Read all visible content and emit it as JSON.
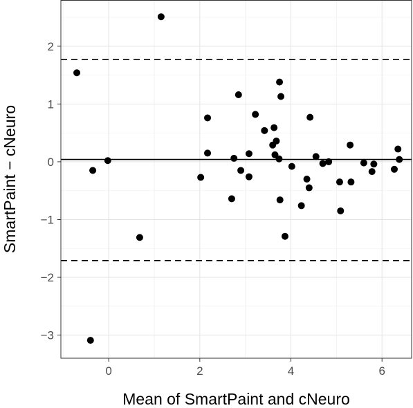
{
  "chart_data": {
    "type": "scatter",
    "title": "",
    "xlabel": "Mean of SmartPaint and cNeuro",
    "ylabel": "SmartPaint − cNeuro",
    "xlim": [
      -1.05,
      6.65
    ],
    "ylim": [
      -3.4,
      2.8
    ],
    "grid": true,
    "x_ticks": [
      0,
      2,
      4,
      6
    ],
    "x_tick_labels": [
      "0",
      "2",
      "4",
      "6"
    ],
    "y_ticks": [
      -3,
      -2,
      -1,
      0,
      1,
      2
    ],
    "y_tick_labels": [
      "−3",
      "−2",
      "−1",
      "0",
      "1",
      "2"
    ],
    "reference_lines": [
      {
        "y": 1.77,
        "style": "dashed"
      },
      {
        "y": 0.04,
        "style": "solid"
      },
      {
        "y": -1.71,
        "style": "dashed"
      }
    ],
    "points": [
      {
        "x": -0.7,
        "y": 1.54
      },
      {
        "x": -0.35,
        "y": -0.15
      },
      {
        "x": -0.02,
        "y": 0.02
      },
      {
        "x": -0.4,
        "y": -3.09
      },
      {
        "x": 0.68,
        "y": -1.31
      },
      {
        "x": 1.15,
        "y": 2.51
      },
      {
        "x": 2.02,
        "y": -0.27
      },
      {
        "x": 2.17,
        "y": 0.76
      },
      {
        "x": 2.17,
        "y": 0.15
      },
      {
        "x": 2.7,
        "y": -0.64
      },
      {
        "x": 2.75,
        "y": 0.06
      },
      {
        "x": 2.85,
        "y": 1.16
      },
      {
        "x": 2.9,
        "y": -0.15
      },
      {
        "x": 3.08,
        "y": 0.14
      },
      {
        "x": 3.08,
        "y": -0.26
      },
      {
        "x": 3.22,
        "y": 0.82
      },
      {
        "x": 3.42,
        "y": 0.54
      },
      {
        "x": 3.6,
        "y": 0.29
      },
      {
        "x": 3.63,
        "y": 0.59
      },
      {
        "x": 3.65,
        "y": 0.12
      },
      {
        "x": 3.68,
        "y": 0.36
      },
      {
        "x": 3.74,
        "y": 0.05
      },
      {
        "x": 3.75,
        "y": 1.38
      },
      {
        "x": 3.76,
        "y": -0.66
      },
      {
        "x": 3.78,
        "y": 1.13
      },
      {
        "x": 3.87,
        "y": -1.29
      },
      {
        "x": 4.02,
        "y": -0.08
      },
      {
        "x": 4.23,
        "y": -0.76
      },
      {
        "x": 4.35,
        "y": -0.3
      },
      {
        "x": 4.4,
        "y": -0.45
      },
      {
        "x": 4.42,
        "y": 0.77
      },
      {
        "x": 4.55,
        "y": 0.09
      },
      {
        "x": 4.7,
        "y": -0.03
      },
      {
        "x": 4.83,
        "y": 0.0
      },
      {
        "x": 5.07,
        "y": -0.35
      },
      {
        "x": 5.09,
        "y": -0.85
      },
      {
        "x": 5.3,
        "y": 0.29
      },
      {
        "x": 5.32,
        "y": -0.35
      },
      {
        "x": 5.6,
        "y": -0.02
      },
      {
        "x": 5.78,
        "y": -0.17
      },
      {
        "x": 5.82,
        "y": -0.04
      },
      {
        "x": 6.27,
        "y": -0.13
      },
      {
        "x": 6.35,
        "y": 0.22
      },
      {
        "x": 6.38,
        "y": 0.04
      }
    ]
  }
}
